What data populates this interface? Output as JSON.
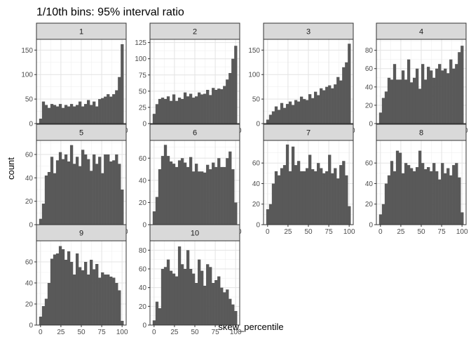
{
  "chart_data": {
    "type": "histogram-facets",
    "title": "1/10th bins: 95% interval ratio",
    "xlabel": "skew_percentile",
    "ylabel": "count",
    "x_ticks": [
      "0",
      "25",
      "50",
      "75",
      "100"
    ],
    "xlim": [
      -5,
      105
    ],
    "bins": 30,
    "bar_color": "#595959",
    "strip_color": "#d9d9d9",
    "grid": true,
    "panels": [
      {
        "label": "1",
        "ylim": [
          0,
          172
        ],
        "y_ticks": [
          0,
          50,
          100,
          150
        ],
        "values": [
          10,
          45,
          38,
          32,
          40,
          38,
          35,
          40,
          32,
          38,
          35,
          40,
          35,
          38,
          45,
          35,
          40,
          48,
          38,
          45,
          35,
          50,
          52,
          55,
          60,
          55,
          60,
          68,
          95,
          162
        ]
      },
      {
        "label": "2",
        "ylim": [
          0,
          130
        ],
        "y_ticks": [
          0,
          25,
          50,
          75,
          100,
          125
        ],
        "values": [
          15,
          30,
          38,
          40,
          38,
          42,
          35,
          45,
          35,
          40,
          38,
          48,
          42,
          46,
          40,
          42,
          48,
          45,
          46,
          52,
          44,
          55,
          52,
          54,
          53,
          58,
          68,
          78,
          100,
          120
        ]
      },
      {
        "label": "3",
        "ylim": [
          0,
          172
        ],
        "y_ticks": [
          0,
          50,
          100,
          150
        ],
        "values": [
          8,
          18,
          25,
          35,
          28,
          42,
          32,
          40,
          45,
          38,
          48,
          45,
          55,
          50,
          48,
          60,
          52,
          65,
          58,
          72,
          68,
          75,
          78,
          72,
          80,
          95,
          88,
          115,
          125,
          163
        ]
      },
      {
        "label": "4",
        "ylim": [
          0,
          92
        ],
        "y_ticks": [
          0,
          20,
          40,
          60,
          80
        ],
        "values": [
          12,
          28,
          35,
          50,
          48,
          65,
          48,
          48,
          58,
          48,
          70,
          45,
          50,
          60,
          38,
          65,
          48,
          62,
          58,
          50,
          60,
          65,
          58,
          60,
          55,
          70,
          60,
          65,
          78,
          85
        ]
      },
      {
        "label": "5",
        "ylim": [
          0,
          72
        ],
        "y_ticks": [
          0,
          20,
          40,
          60
        ],
        "values": [
          5,
          18,
          42,
          45,
          58,
          44,
          55,
          62,
          56,
          60,
          54,
          68,
          52,
          58,
          50,
          64,
          60,
          56,
          46,
          60,
          52,
          58,
          44,
          60,
          60,
          54,
          55,
          60,
          52,
          30
        ]
      },
      {
        "label": "6",
        "ylim": [
          0,
          76
        ],
        "y_ticks": [
          0,
          20,
          40,
          60
        ],
        "values": [
          12,
          25,
          50,
          62,
          72,
          62,
          57,
          55,
          52,
          58,
          60,
          56,
          52,
          61,
          48,
          55,
          48,
          48,
          47,
          54,
          50,
          56,
          52,
          60,
          52,
          52,
          60,
          66,
          50,
          20
        ]
      },
      {
        "label": "7",
        "ylim": [
          0,
          82
        ],
        "y_ticks": [
          0,
          20,
          40,
          60
        ],
        "values": [
          15,
          20,
          40,
          52,
          48,
          55,
          58,
          78,
          52,
          76,
          58,
          62,
          52,
          52,
          55,
          68,
          54,
          52,
          60,
          55,
          50,
          52,
          68,
          50,
          55,
          45,
          58,
          62,
          48,
          18
        ]
      },
      {
        "label": "8",
        "ylim": [
          0,
          82
        ],
        "y_ticks": [
          0,
          20,
          40,
          60
        ],
        "values": [
          10,
          20,
          40,
          48,
          62,
          52,
          72,
          70,
          50,
          60,
          58,
          55,
          52,
          56,
          72,
          60,
          54,
          56,
          52,
          60,
          52,
          44,
          60,
          50,
          55,
          48,
          58,
          60,
          46,
          12
        ]
      },
      {
        "label": "9",
        "ylim": [
          0,
          80
        ],
        "y_ticks": [
          0,
          20,
          40,
          60
        ],
        "values": [
          8,
          18,
          25,
          40,
          63,
          67,
          68,
          75,
          72,
          62,
          70,
          60,
          48,
          68,
          55,
          52,
          60,
          48,
          62,
          53,
          58,
          45,
          50,
          48,
          48,
          46,
          45,
          40,
          33,
          4
        ]
      },
      {
        "label": "10",
        "ylim": [
          0,
          90
        ],
        "y_ticks": [
          0,
          20,
          40,
          60,
          80
        ],
        "values": [
          5,
          25,
          18,
          60,
          62,
          70,
          58,
          55,
          52,
          84,
          65,
          60,
          80,
          60,
          55,
          45,
          70,
          58,
          42,
          65,
          62,
          45,
          48,
          52,
          40,
          35,
          38,
          28,
          22,
          15
        ]
      }
    ]
  }
}
